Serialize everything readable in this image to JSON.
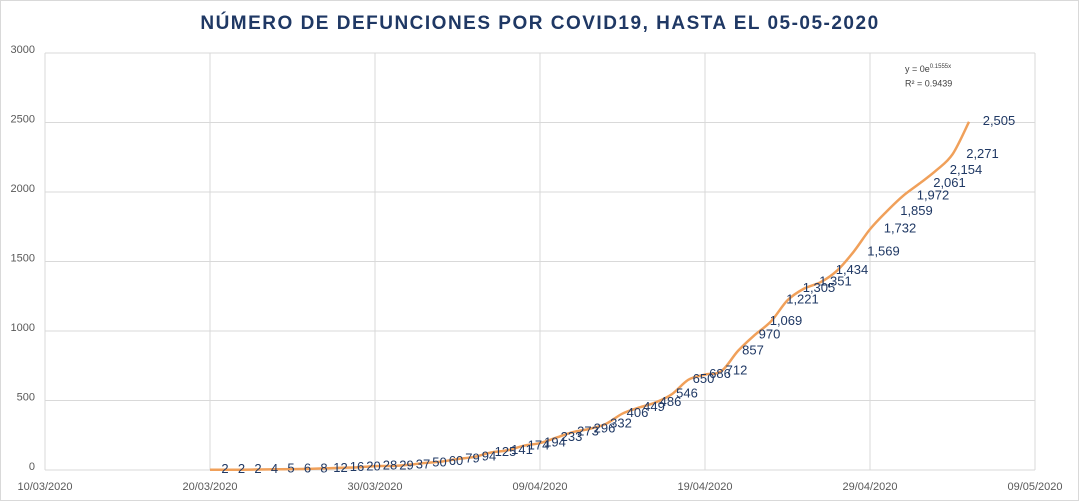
{
  "chart_data": {
    "type": "line",
    "title": "NÚMERO DE DEFUNCIONES POR COVID19, HASTA EL 05-05-2020",
    "annotations": {
      "equation": "y = 0e",
      "exponent": "0.1555x",
      "r_squared": "R² = 0.9439"
    },
    "x": [
      "2020-03-20",
      "2020-03-21",
      "2020-03-22",
      "2020-03-23",
      "2020-03-24",
      "2020-03-25",
      "2020-03-26",
      "2020-03-27",
      "2020-03-28",
      "2020-03-29",
      "2020-03-30",
      "2020-03-31",
      "2020-04-01",
      "2020-04-02",
      "2020-04-03",
      "2020-04-04",
      "2020-04-05",
      "2020-04-06",
      "2020-04-07",
      "2020-04-08",
      "2020-04-09",
      "2020-04-10",
      "2020-04-11",
      "2020-04-12",
      "2020-04-13",
      "2020-04-14",
      "2020-04-15",
      "2020-04-16",
      "2020-04-17",
      "2020-04-18",
      "2020-04-19",
      "2020-04-20",
      "2020-04-21",
      "2020-04-22",
      "2020-04-23",
      "2020-04-24",
      "2020-04-25",
      "2020-04-26",
      "2020-04-27",
      "2020-04-28",
      "2020-04-29",
      "2020-04-30",
      "2020-05-01",
      "2020-05-02",
      "2020-05-03",
      "2020-05-04",
      "2020-05-05"
    ],
    "series": [
      {
        "color": "#f0a05a",
        "values": [
          2,
          2,
          2,
          4,
          5,
          6,
          8,
          12,
          16,
          20,
          28,
          29,
          37,
          50,
          60,
          79,
          94,
          125,
          141,
          174,
          194,
          233,
          273,
          296,
          332,
          406,
          449,
          486,
          546,
          650,
          686,
          712,
          857,
          970,
          1069,
          1221,
          1305,
          1351,
          1434,
          1569,
          1732,
          1859,
          1972,
          2061,
          2154,
          2271,
          2505
        ],
        "value_labels": [
          "2",
          "2",
          "2",
          "4",
          "5",
          "6",
          "8",
          "12",
          "16",
          "20",
          "28",
          "29",
          "37",
          "50",
          "60",
          "79",
          "94",
          "125",
          "141",
          "174",
          "194",
          "233",
          "273",
          "296",
          "332",
          "406",
          "449",
          "486",
          "546",
          "650",
          "686",
          "712",
          "857",
          "970",
          "1,069",
          "1,221",
          "1,305",
          "1,351",
          "1,434",
          "1,569",
          "1,732",
          "1,859",
          "1,972",
          "2,061",
          "2,154",
          "2,271",
          "2,505"
        ]
      }
    ],
    "xlim": [
      "2020-03-10",
      "2020-05-09"
    ],
    "xticks": [
      {
        "value": "2020-03-10",
        "label": "10/03/2020"
      },
      {
        "value": "2020-03-20",
        "label": "20/03/2020"
      },
      {
        "value": "2020-03-30",
        "label": "30/03/2020"
      },
      {
        "value": "2020-04-09",
        "label": "09/04/2020"
      },
      {
        "value": "2020-04-19",
        "label": "19/04/2020"
      },
      {
        "value": "2020-04-29",
        "label": "29/04/2020"
      },
      {
        "value": "2020-05-09",
        "label": "09/05/2020"
      }
    ],
    "ylim": [
      0,
      3000
    ],
    "yticks": [
      0,
      500,
      1000,
      1500,
      2000,
      2500,
      3000
    ],
    "grid": true
  }
}
